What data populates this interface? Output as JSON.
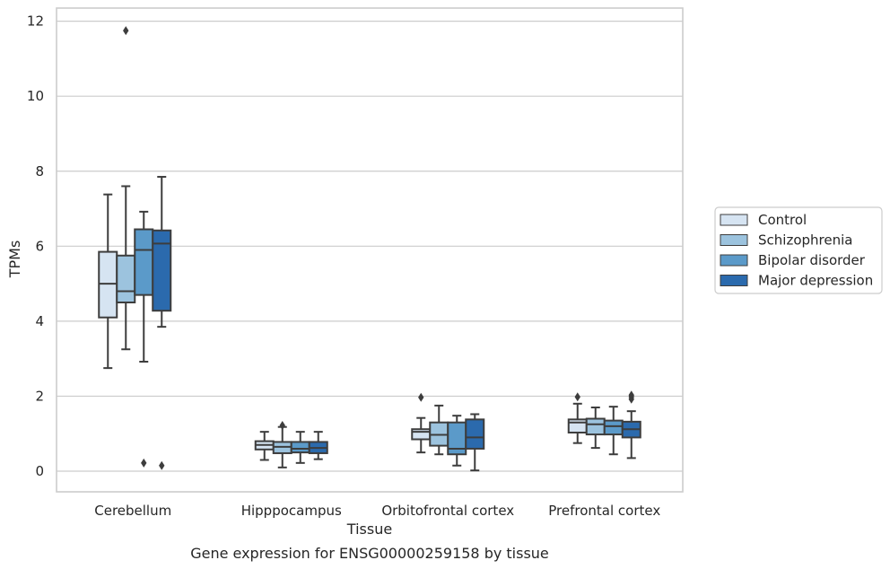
{
  "chart_data": {
    "type": "box",
    "xlabel": "Tissue",
    "ylabel": "TPMs",
    "caption": "Gene expression for ENSG00000259158 by tissue",
    "ylim": [
      -0.55,
      12.35
    ],
    "yticks": [
      0,
      2,
      4,
      6,
      8,
      10,
      12
    ],
    "grid": "horizontal",
    "legend_position": "right",
    "categories": [
      "Cerebellum",
      "Hipppocampus",
      "Orbitofrontal cortex",
      "Prefrontal cortex"
    ],
    "series": [
      {
        "name": "Control",
        "color": "#d6e4f2",
        "boxes": [
          {
            "whislo": 2.75,
            "q1": 4.1,
            "med": 5.0,
            "q3": 5.85,
            "whishi": 7.38,
            "fliers": []
          },
          {
            "whislo": 0.3,
            "q1": 0.58,
            "med": 0.7,
            "q3": 0.8,
            "whishi": 1.05,
            "fliers": []
          },
          {
            "whislo": 0.5,
            "q1": 0.85,
            "med": 1.05,
            "q3": 1.12,
            "whishi": 1.42,
            "fliers": [
              1.97
            ]
          },
          {
            "whislo": 0.75,
            "q1": 1.03,
            "med": 1.3,
            "q3": 1.38,
            "whishi": 1.8,
            "fliers": [
              1.98
            ]
          }
        ]
      },
      {
        "name": "Schizophrenia",
        "color": "#9cc3de",
        "boxes": [
          {
            "whislo": 3.25,
            "q1": 4.5,
            "med": 4.8,
            "q3": 5.75,
            "whishi": 7.6,
            "fliers": [
              11.75
            ]
          },
          {
            "whislo": 0.1,
            "q1": 0.48,
            "med": 0.65,
            "q3": 0.78,
            "whishi": 1.18,
            "fliers": [
              1.22
            ]
          },
          {
            "whislo": 0.45,
            "q1": 0.68,
            "med": 0.97,
            "q3": 1.3,
            "whishi": 1.75,
            "fliers": []
          },
          {
            "whislo": 0.62,
            "q1": 0.98,
            "med": 1.25,
            "q3": 1.4,
            "whishi": 1.7,
            "fliers": []
          }
        ]
      },
      {
        "name": "Bipolar disorder",
        "color": "#5b9ac9",
        "boxes": [
          {
            "whislo": 2.92,
            "q1": 4.7,
            "med": 5.9,
            "q3": 6.45,
            "whishi": 6.92,
            "fliers": [
              0.22
            ]
          },
          {
            "whislo": 0.22,
            "q1": 0.5,
            "med": 0.6,
            "q3": 0.78,
            "whishi": 1.05,
            "fliers": []
          },
          {
            "whislo": 0.15,
            "q1": 0.45,
            "med": 0.6,
            "q3": 1.3,
            "whishi": 1.48,
            "fliers": []
          },
          {
            "whislo": 0.45,
            "q1": 0.98,
            "med": 1.2,
            "q3": 1.35,
            "whishi": 1.72,
            "fliers": []
          }
        ]
      },
      {
        "name": "Major depression",
        "color": "#2b6aad",
        "boxes": [
          {
            "whislo": 3.85,
            "q1": 4.28,
            "med": 6.07,
            "q3": 6.42,
            "whishi": 7.85,
            "fliers": [
              0.15
            ]
          },
          {
            "whislo": 0.32,
            "q1": 0.48,
            "med": 0.62,
            "q3": 0.78,
            "whishi": 1.05,
            "fliers": []
          },
          {
            "whislo": 0.02,
            "q1": 0.6,
            "med": 0.9,
            "q3": 1.38,
            "whishi": 1.52,
            "fliers": []
          },
          {
            "whislo": 0.35,
            "q1": 0.9,
            "med": 1.12,
            "q3": 1.32,
            "whishi": 1.6,
            "fliers": [
              1.92,
              1.98,
              2.03
            ]
          }
        ]
      }
    ]
  },
  "colors": {
    "grid": "#cccccc",
    "box_edge": "#3d3d3d",
    "frame": "#cccccc"
  }
}
